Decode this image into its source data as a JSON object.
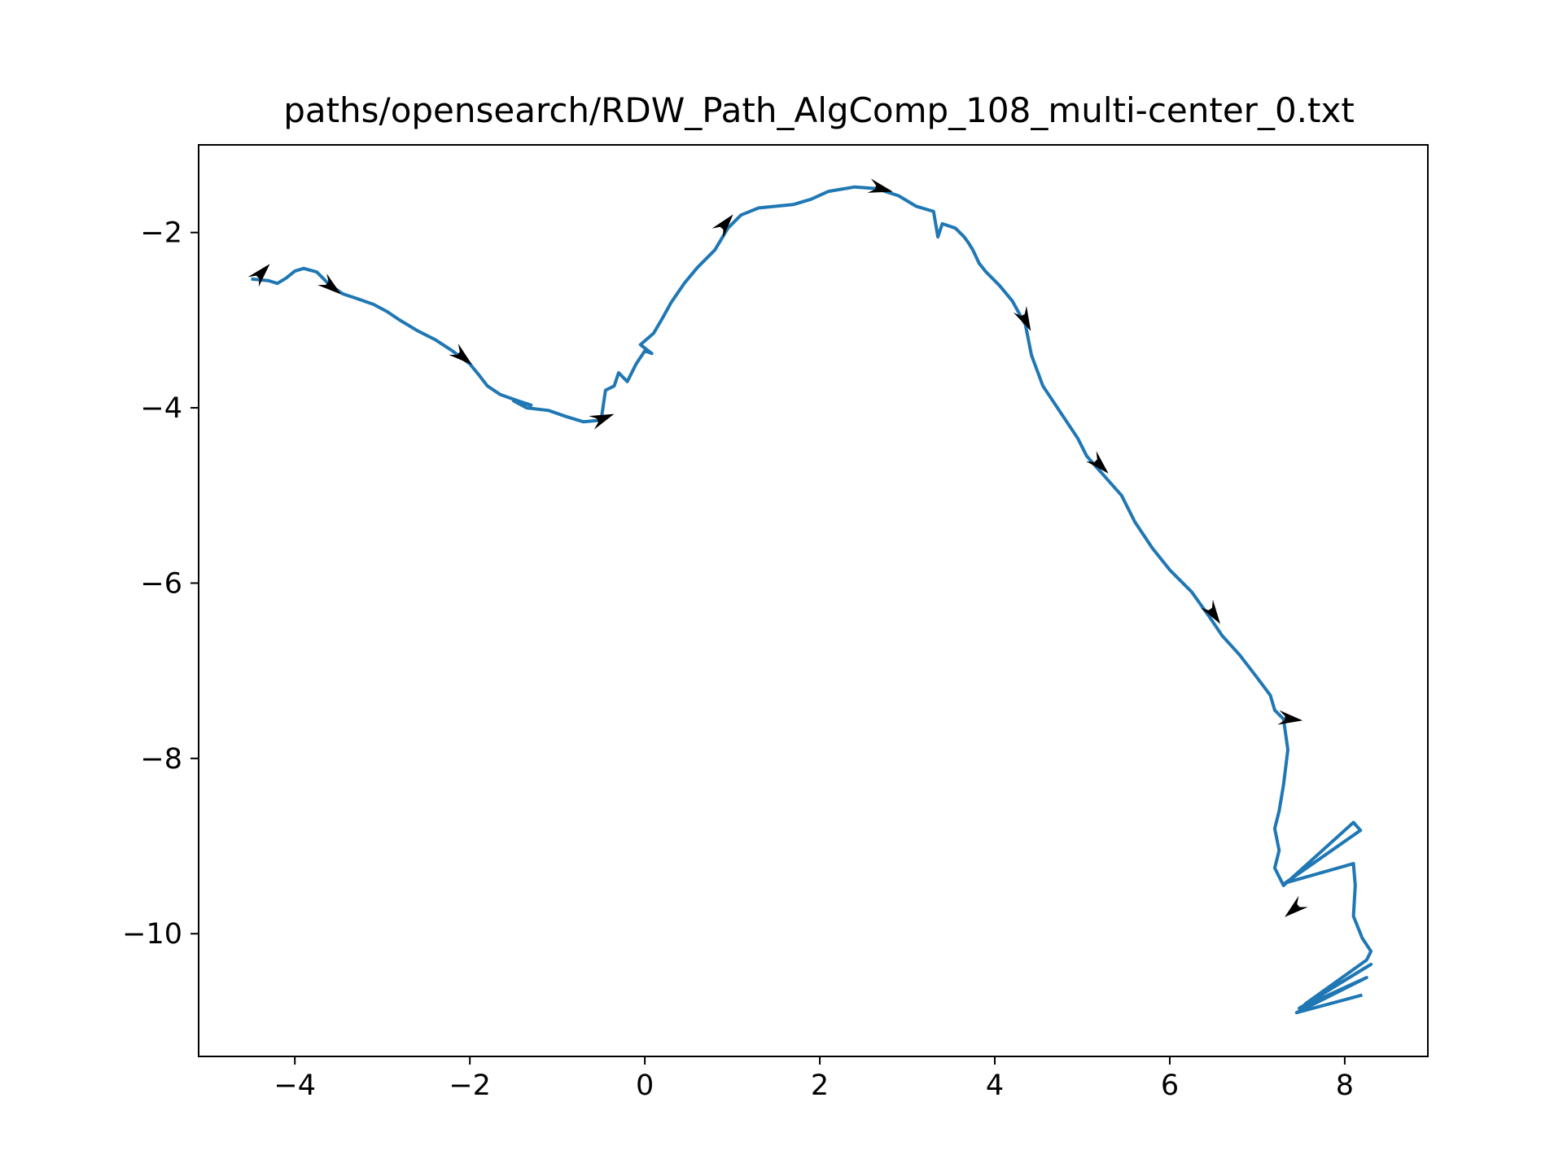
{
  "chart_data": {
    "type": "line",
    "title": "paths/opensearch/RDW_Path_AlgComp_108_multi-center_0.txt",
    "xlabel": "",
    "ylabel": "",
    "xlim": [
      -5.1,
      8.95
    ],
    "ylim": [
      -11.4,
      -1.0
    ],
    "xticks": [
      -4,
      -2,
      0,
      2,
      4,
      6,
      8
    ],
    "yticks": [
      -2,
      -4,
      -6,
      -8,
      -10
    ],
    "grid": false,
    "legend": "none",
    "line_color": "#1f77b4",
    "arrow_color": "#000000",
    "series": [
      {
        "values": [
          [
            -4.5,
            -2.53
          ],
          [
            -4.3,
            -2.55
          ],
          [
            -4.2,
            -2.58
          ],
          [
            -4.1,
            -2.52
          ],
          [
            -4.0,
            -2.44
          ],
          [
            -3.9,
            -2.41
          ],
          [
            -3.75,
            -2.45
          ],
          [
            -3.6,
            -2.6
          ],
          [
            -3.45,
            -2.7
          ],
          [
            -3.3,
            -2.75
          ],
          [
            -3.1,
            -2.82
          ],
          [
            -2.95,
            -2.9
          ],
          [
            -2.8,
            -3.0
          ],
          [
            -2.6,
            -3.12
          ],
          [
            -2.4,
            -3.22
          ],
          [
            -2.2,
            -3.35
          ],
          [
            -2.0,
            -3.5
          ],
          [
            -1.9,
            -3.62
          ],
          [
            -1.8,
            -3.75
          ],
          [
            -1.65,
            -3.85
          ],
          [
            -1.45,
            -3.92
          ],
          [
            -1.3,
            -3.97
          ],
          [
            -1.5,
            -3.92
          ],
          [
            -1.35,
            -4.0
          ],
          [
            -1.1,
            -4.03
          ],
          [
            -0.9,
            -4.1
          ],
          [
            -0.7,
            -4.16
          ],
          [
            -0.5,
            -4.14
          ],
          [
            -0.45,
            -3.8
          ],
          [
            -0.35,
            -3.75
          ],
          [
            -0.3,
            -3.6
          ],
          [
            -0.2,
            -3.7
          ],
          [
            -0.1,
            -3.5
          ],
          [
            0.0,
            -3.35
          ],
          [
            0.08,
            -3.38
          ],
          [
            -0.05,
            -3.28
          ],
          [
            0.1,
            -3.15
          ],
          [
            0.2,
            -2.98
          ],
          [
            0.3,
            -2.8
          ],
          [
            0.45,
            -2.58
          ],
          [
            0.6,
            -2.4
          ],
          [
            0.8,
            -2.2
          ],
          [
            0.95,
            -1.95
          ],
          [
            1.1,
            -1.8
          ],
          [
            1.3,
            -1.72
          ],
          [
            1.5,
            -1.7
          ],
          [
            1.7,
            -1.68
          ],
          [
            1.9,
            -1.62
          ],
          [
            2.1,
            -1.53
          ],
          [
            2.4,
            -1.48
          ],
          [
            2.65,
            -1.5
          ],
          [
            2.9,
            -1.58
          ],
          [
            3.1,
            -1.7
          ],
          [
            3.3,
            -1.76
          ],
          [
            3.35,
            -2.05
          ],
          [
            3.4,
            -1.9
          ],
          [
            3.55,
            -1.95
          ],
          [
            3.65,
            -2.05
          ],
          [
            3.7,
            -2.12
          ],
          [
            3.75,
            -2.2
          ],
          [
            3.82,
            -2.35
          ],
          [
            3.9,
            -2.45
          ],
          [
            4.05,
            -2.6
          ],
          [
            4.2,
            -2.78
          ],
          [
            4.35,
            -3.05
          ],
          [
            4.42,
            -3.4
          ],
          [
            4.55,
            -3.75
          ],
          [
            4.75,
            -4.05
          ],
          [
            4.95,
            -4.35
          ],
          [
            5.05,
            -4.55
          ],
          [
            5.2,
            -4.72
          ],
          [
            5.45,
            -5.0
          ],
          [
            5.6,
            -5.3
          ],
          [
            5.8,
            -5.6
          ],
          [
            6.0,
            -5.85
          ],
          [
            6.25,
            -6.1
          ],
          [
            6.45,
            -6.38
          ],
          [
            6.6,
            -6.6
          ],
          [
            6.8,
            -6.82
          ],
          [
            7.0,
            -7.08
          ],
          [
            7.15,
            -7.28
          ],
          [
            7.2,
            -7.45
          ],
          [
            7.3,
            -7.55
          ],
          [
            7.35,
            -7.9
          ],
          [
            7.3,
            -8.3
          ],
          [
            7.25,
            -8.6
          ],
          [
            7.2,
            -8.8
          ],
          [
            7.25,
            -9.05
          ],
          [
            7.2,
            -9.25
          ],
          [
            7.3,
            -9.45
          ],
          [
            8.1,
            -8.73
          ],
          [
            8.18,
            -8.82
          ],
          [
            7.32,
            -9.42
          ],
          [
            8.1,
            -9.2
          ],
          [
            8.12,
            -9.45
          ],
          [
            8.1,
            -9.8
          ],
          [
            8.2,
            -10.05
          ],
          [
            8.3,
            -10.2
          ],
          [
            8.25,
            -10.3
          ],
          [
            7.55,
            -10.8
          ],
          [
            8.3,
            -10.35
          ],
          [
            7.48,
            -10.85
          ],
          [
            8.25,
            -10.5
          ],
          [
            7.45,
            -10.9
          ],
          [
            8.2,
            -10.7
          ]
        ]
      }
    ],
    "arrows": [
      {
        "x": -4.38,
        "y": -2.46,
        "dx": 0.12,
        "dy": 0.13
      },
      {
        "x": -3.58,
        "y": -2.62,
        "dx": 0.1,
        "dy": -0.08
      },
      {
        "x": -2.08,
        "y": -3.42,
        "dx": 0.12,
        "dy": -0.1
      },
      {
        "x": -0.48,
        "y": -4.12,
        "dx": 0.18,
        "dy": 0.07
      },
      {
        "x": 0.92,
        "y": -1.9,
        "dx": 0.1,
        "dy": 0.12
      },
      {
        "x": 2.7,
        "y": -1.5,
        "dx": 0.16,
        "dy": -0.04
      },
      {
        "x": 4.35,
        "y": -3.0,
        "dx": 0.06,
        "dy": -0.12
      },
      {
        "x": 5.2,
        "y": -4.65,
        "dx": 0.12,
        "dy": -0.12
      },
      {
        "x": 6.5,
        "y": -6.35,
        "dx": 0.08,
        "dy": -0.12
      },
      {
        "x": 7.38,
        "y": -7.55,
        "dx": 0.16,
        "dy": -0.02
      },
      {
        "x": 7.42,
        "y": -9.72,
        "dx": -0.12,
        "dy": -0.1
      }
    ]
  }
}
